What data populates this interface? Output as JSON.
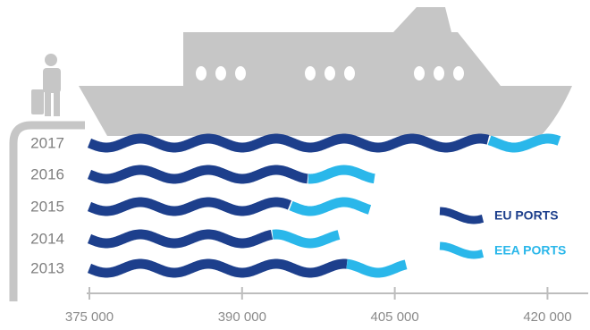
{
  "chart_data": {
    "type": "wave-bar",
    "categories": [
      "2017",
      "2016",
      "2015",
      "2014",
      "2013"
    ],
    "series": [
      {
        "name": "EU PORTS",
        "color": "#1d3f8c",
        "values": [
          414300,
          396500,
          394800,
          393000,
          400300
        ]
      },
      {
        "name": "EEA PORTS",
        "color": "#2ab7ea",
        "values": [
          7000,
          6600,
          7800,
          6600,
          5900
        ]
      }
    ],
    "xlim": [
      374000,
      424000
    ],
    "xticks": [
      {
        "value": 375000,
        "label": "375 000"
      },
      {
        "value": 390000,
        "label": "390 000"
      },
      {
        "value": 405000,
        "label": "405 000"
      },
      {
        "value": 420000,
        "label": "420 000"
      }
    ]
  }
}
